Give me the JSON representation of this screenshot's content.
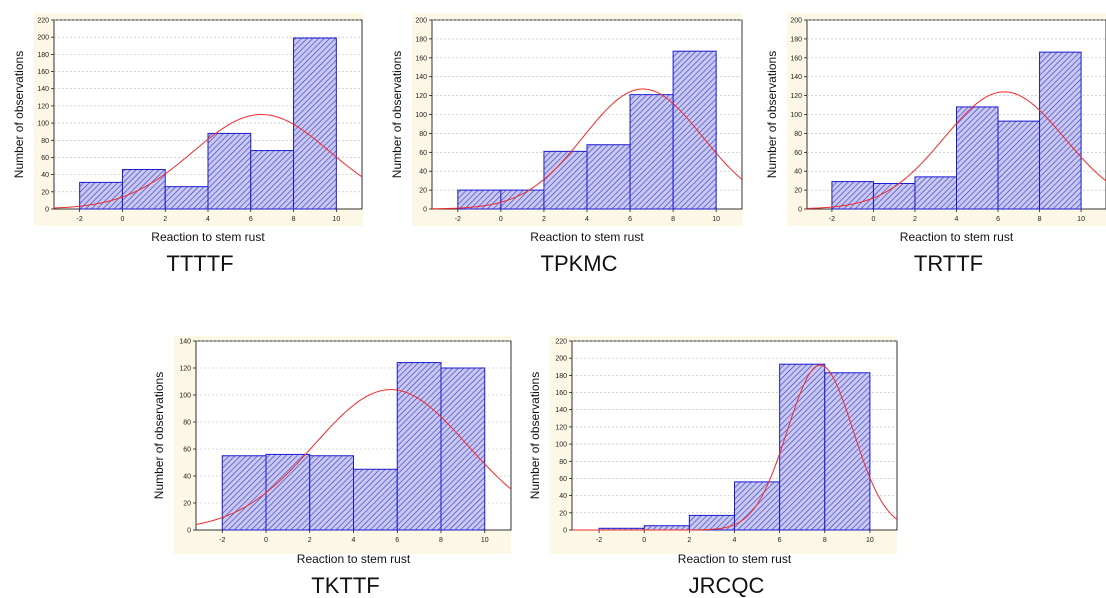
{
  "colors": {
    "panel_background": "#fdf7e6",
    "plot_background": "#ffffff",
    "bar_fill": "#c9c9ee",
    "bar_hatch": "#3b3bd6",
    "bar_stroke": "#1a1ad0",
    "curve": "#f02a2a",
    "grid": "#b8b8b8",
    "axis": "#000000"
  },
  "chart_data": [
    {
      "type": "bar",
      "title": "TTTTF",
      "xlabel": "Reaction to stem rust",
      "ylabel": "Number of observations",
      "bin_edges": [
        -2,
        0,
        2,
        4,
        6,
        8,
        10
      ],
      "values": [
        31,
        46,
        26,
        88,
        68,
        199
      ],
      "xlim": [
        -3.2,
        11.2
      ],
      "ylim": [
        0,
        220
      ],
      "xticks": [
        "-2",
        "0",
        "2",
        "4",
        "6",
        "8",
        "10"
      ],
      "yticks": [
        "0",
        "20",
        "40",
        "60",
        "80",
        "100",
        "120",
        "140",
        "160",
        "180",
        "200",
        "220"
      ],
      "curve": {
        "type": "normal",
        "peak": 110,
        "mean": 6.5,
        "sd": 3.2
      },
      "grid": true
    },
    {
      "type": "bar",
      "title": "TPKMC",
      "xlabel": "Reaction to stem rust",
      "ylabel": "Number of observations",
      "bin_edges": [
        -2,
        0,
        2,
        4,
        6,
        8,
        10
      ],
      "values": [
        20,
        20,
        61,
        68,
        121,
        167
      ],
      "xlim": [
        -3.2,
        11.2
      ],
      "ylim": [
        0,
        200
      ],
      "xticks": [
        "-2",
        "0",
        "2",
        "4",
        "6",
        "8",
        "10"
      ],
      "yticks": [
        "0",
        "20",
        "40",
        "60",
        "80",
        "100",
        "120",
        "140",
        "160",
        "180",
        "200"
      ],
      "curve": {
        "type": "normal",
        "peak": 127,
        "mean": 6.6,
        "sd": 2.75
      },
      "grid": true
    },
    {
      "type": "bar",
      "title": "TRTTF",
      "xlabel": "Reaction to stem rust",
      "ylabel": "Number of observations",
      "bin_edges": [
        -2,
        0,
        2,
        4,
        6,
        8,
        10
      ],
      "values": [
        29,
        27,
        34,
        108,
        93,
        166
      ],
      "xlim": [
        -3.2,
        11.2
      ],
      "ylim": [
        0,
        200
      ],
      "xticks": [
        "-2",
        "0",
        "2",
        "4",
        "6",
        "8",
        "10"
      ],
      "yticks": [
        "0",
        "20",
        "40",
        "60",
        "80",
        "100",
        "120",
        "140",
        "160",
        "180",
        "200"
      ],
      "curve": {
        "type": "normal",
        "peak": 124,
        "mean": 6.3,
        "sd": 2.9
      },
      "grid": true
    },
    {
      "type": "bar",
      "title": "TKTTF",
      "xlabel": "Reaction to stem rust",
      "ylabel": "Number of observations",
      "bin_edges": [
        -2,
        0,
        2,
        4,
        6,
        8,
        10
      ],
      "values": [
        55,
        56,
        55,
        45,
        124,
        120
      ],
      "xlim": [
        -3.2,
        11.2
      ],
      "ylim": [
        0,
        140
      ],
      "xticks": [
        "-2",
        "0",
        "2",
        "4",
        "6",
        "8",
        "10"
      ],
      "yticks": [
        "0",
        "20",
        "40",
        "60",
        "80",
        "100",
        "120",
        "140"
      ],
      "curve": {
        "type": "normal",
        "peak": 104,
        "mean": 5.7,
        "sd": 3.5
      },
      "grid": true
    },
    {
      "type": "bar",
      "title": "JRCQC",
      "xlabel": "Reaction to stem rust",
      "ylabel": "Number of observations",
      "bin_edges": [
        -2,
        0,
        2,
        4,
        6,
        8,
        10
      ],
      "values": [
        2,
        5,
        17,
        56,
        193,
        183
      ],
      "xlim": [
        -3.2,
        11.2
      ],
      "ylim": [
        0,
        220
      ],
      "xticks": [
        "-2",
        "0",
        "2",
        "4",
        "6",
        "8",
        "10"
      ],
      "yticks": [
        "0",
        "20",
        "40",
        "60",
        "80",
        "100",
        "120",
        "140",
        "160",
        "180",
        "200",
        "220"
      ],
      "curve": {
        "type": "normal",
        "peak": 192,
        "mean": 7.8,
        "sd": 1.45
      },
      "grid": true
    }
  ]
}
